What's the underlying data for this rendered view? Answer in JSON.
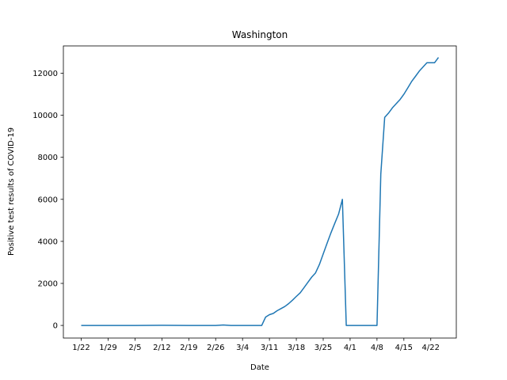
{
  "chart_data": {
    "type": "line",
    "title": "Washington",
    "xlabel": "Date",
    "ylabel": "Positive test results of COVID-19",
    "x_ticks": [
      "1/22",
      "1/29",
      "2/5",
      "2/12",
      "2/19",
      "2/26",
      "3/4",
      "3/11",
      "3/18",
      "3/25",
      "4/1",
      "4/8",
      "4/15",
      "4/22"
    ],
    "y_ticks": [
      0,
      2000,
      4000,
      6000,
      8000,
      10000,
      12000
    ],
    "ylim": [
      -600,
      13300
    ],
    "grid": false,
    "series": [
      {
        "color": "#1f77b4",
        "x": [
          "1/22",
          "1/29",
          "2/5",
          "2/12",
          "2/19",
          "2/26",
          "2/28",
          "3/1",
          "3/4",
          "3/8",
          "3/9",
          "3/10",
          "3/11",
          "3/12",
          "3/13",
          "3/14",
          "3/15",
          "3/16",
          "3/17",
          "3/18",
          "3/19",
          "3/20",
          "3/21",
          "3/22",
          "3/23",
          "3/24",
          "3/25",
          "3/26",
          "3/27",
          "3/28",
          "3/29",
          "3/30",
          "3/31",
          "4/1",
          "4/2",
          "4/3",
          "4/4",
          "4/5",
          "4/6",
          "4/7",
          "4/8",
          "4/9",
          "4/10",
          "4/11",
          "4/12",
          "4/13",
          "4/14",
          "4/15",
          "4/16",
          "4/17",
          "4/18",
          "4/19",
          "4/20",
          "4/21",
          "4/22",
          "4/23",
          "4/24"
        ],
        "y": [
          0,
          0,
          0,
          5,
          0,
          0,
          20,
          0,
          0,
          0,
          0,
          400,
          510,
          570,
          700,
          800,
          900,
          1040,
          1200,
          1380,
          1550,
          1800,
          2050,
          2300,
          2500,
          2900,
          3400,
          3900,
          4400,
          4850,
          5300,
          6000,
          0,
          0,
          0,
          0,
          0,
          0,
          0,
          0,
          0,
          7200,
          9900,
          10100,
          10350,
          10550,
          10750,
          11000,
          11300,
          11600,
          11850,
          12100,
          12300,
          12500,
          12500,
          12500,
          12750
        ]
      }
    ]
  }
}
